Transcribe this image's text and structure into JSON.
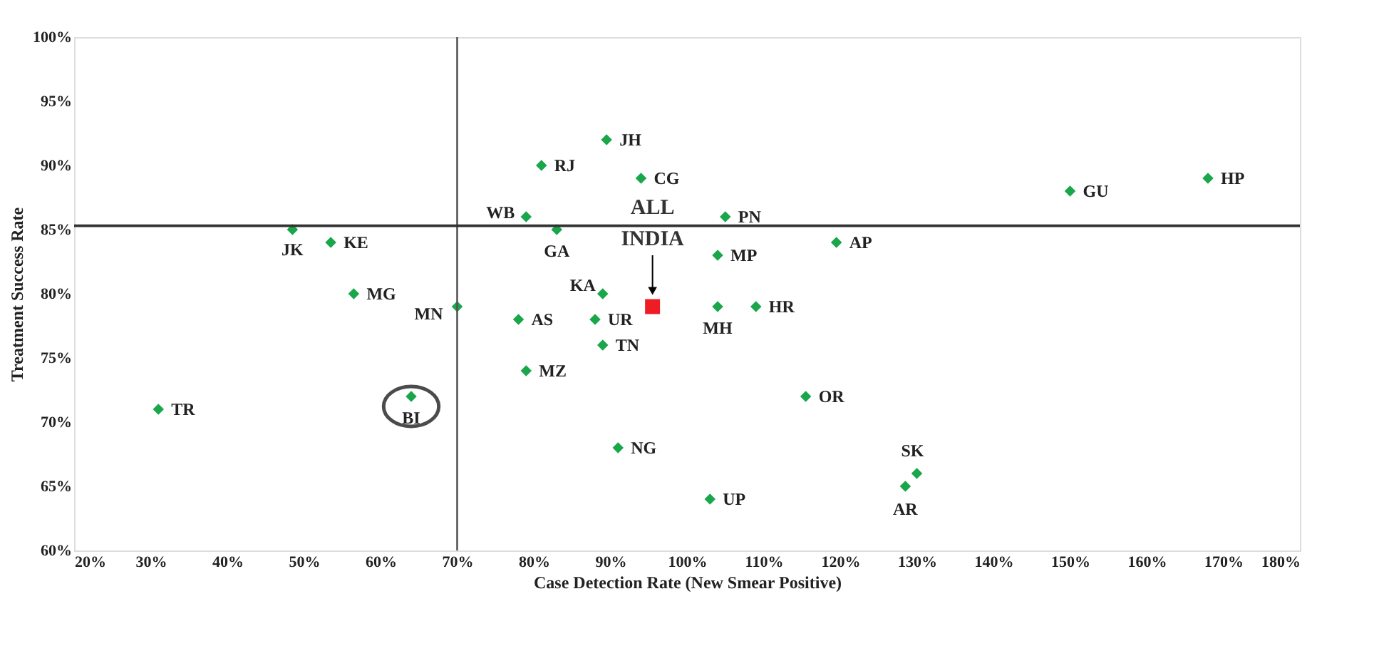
{
  "chart_data": {
    "type": "scatter",
    "xlabel": "Case Detection Rate (New Smear Positive)",
    "ylabel": "Treatment Success Rate",
    "xlim": [
      20,
      180
    ],
    "ylim": [
      60,
      100
    ],
    "xticks": [
      {
        "value": 20,
        "label": "20%"
      },
      {
        "value": 30,
        "label": "30%"
      },
      {
        "value": 40,
        "label": "40%"
      },
      {
        "value": 50,
        "label": "50%"
      },
      {
        "value": 60,
        "label": "60%"
      },
      {
        "value": 70,
        "label": "70%"
      },
      {
        "value": 80,
        "label": "80%"
      },
      {
        "value": 90,
        "label": "90%"
      },
      {
        "value": 100,
        "label": "100%"
      },
      {
        "value": 110,
        "label": "110%"
      },
      {
        "value": 120,
        "label": "120%"
      },
      {
        "value": 130,
        "label": "130%"
      },
      {
        "value": 140,
        "label": "140%"
      },
      {
        "value": 150,
        "label": "150%"
      },
      {
        "value": 160,
        "label": "160%"
      },
      {
        "value": 170,
        "label": "170%"
      },
      {
        "value": 180,
        "label": "180%"
      }
    ],
    "yticks": [
      {
        "value": 60,
        "label": "60%"
      },
      {
        "value": 65,
        "label": "65%"
      },
      {
        "value": 70,
        "label": "70%"
      },
      {
        "value": 75,
        "label": "75%"
      },
      {
        "value": 80,
        "label": "80%"
      },
      {
        "value": 85,
        "label": "85%"
      },
      {
        "value": 90,
        "label": "90%"
      },
      {
        "value": 95,
        "label": "95%"
      },
      {
        "value": 100,
        "label": "100%"
      }
    ],
    "grid": false,
    "legend": false,
    "series": [
      {
        "color": "#1aa64b",
        "marker": "diamond",
        "x": [
          31,
          48.5,
          53.5,
          56.5,
          64,
          70,
          79,
          83,
          78,
          79,
          81,
          89,
          88,
          89,
          89.5,
          91,
          94,
          103,
          104,
          104,
          105,
          109,
          115.5,
          119.5,
          128.5,
          130,
          150,
          168
        ],
        "values": [
          71,
          85,
          84,
          80,
          72,
          79,
          86,
          85,
          78,
          74,
          90,
          80,
          78,
          76,
          92,
          68,
          89,
          64,
          83,
          79,
          86,
          79,
          72,
          84,
          65,
          66,
          88,
          89
        ],
        "value_labels": [
          "TR",
          "JK",
          "KE",
          "MG",
          "BI",
          "MN",
          "WB",
          "GA",
          "AS",
          "MZ",
          "RJ",
          "KA",
          "UR",
          "TN",
          "JH",
          "NG",
          "CG",
          "UP",
          "MP",
          "MH",
          "PN",
          "HR",
          "OR",
          "AP",
          "AR",
          "SK",
          "GU",
          "HP"
        ]
      },
      {
        "name": "ALL INDIA",
        "color": "#ee1c25",
        "marker": "square",
        "x": [
          95.5
        ],
        "values": [
          79
        ]
      }
    ],
    "ref_lines": [
      {
        "axis": "x",
        "value": 70,
        "color": "#555555"
      },
      {
        "axis": "y",
        "value": 85.3,
        "color": "#333333"
      }
    ]
  }
}
